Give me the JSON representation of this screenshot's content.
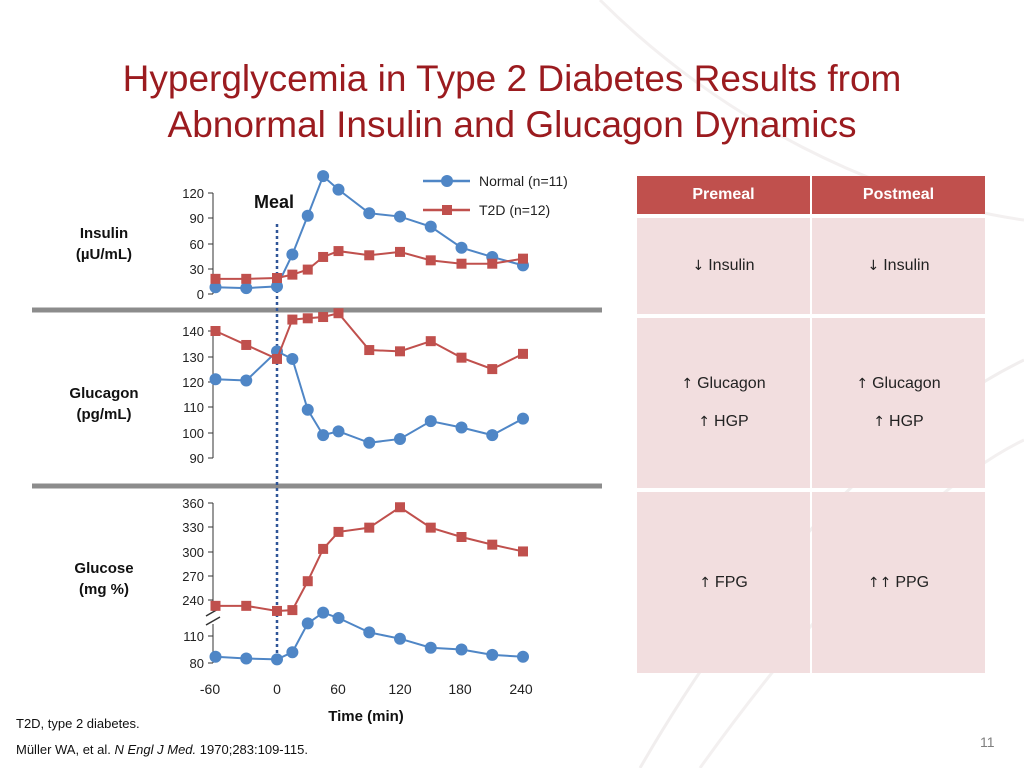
{
  "slide": {
    "title_line1": "Hyperglycemia in Type 2 Diabetes Results from",
    "title_line2": "Abnormal Insulin and Glucagon Dynamics",
    "slide_number": "11"
  },
  "footnotes": {
    "abbrev": "T2D, type 2 diabetes.",
    "ref_authors": "Müller WA, et al.",
    "ref_journal": "N Engl J Med.",
    "ref_details": "1970;283:109-115."
  },
  "colors": {
    "title": "#9b1b1f",
    "normal": "#4f86c6",
    "t2d": "#c0504d",
    "table_header": "#c0504d",
    "table_cell": "#f2dedf",
    "separator": "#8c8c8c",
    "meal_line": "#2f5597"
  },
  "table": {
    "headers": [
      "Premeal",
      "Postmeal"
    ],
    "rows": [
      {
        "premeal": [
          {
            "arrow": "↓",
            "text": "Insulin"
          }
        ],
        "postmeal": [
          {
            "arrow": "↓",
            "text": "Insulin"
          }
        ]
      },
      {
        "premeal": [
          {
            "arrow": "↑",
            "text": "Glucagon"
          },
          {
            "arrow": "↑",
            "text": "HGP"
          }
        ],
        "postmeal": [
          {
            "arrow": "↑",
            "text": "Glucagon"
          },
          {
            "arrow": "↑",
            "text": "HGP"
          }
        ]
      },
      {
        "premeal": [
          {
            "arrow": "↑",
            "text": "FPG"
          }
        ],
        "postmeal": [
          {
            "arrow": "↑↑",
            "text": "PPG"
          }
        ]
      }
    ]
  },
  "chart_data": {
    "type": "line",
    "xlabel": "Time (min)",
    "x_ticks": [
      "-60",
      "0",
      "60",
      "120",
      "180",
      "240"
    ],
    "annotation": "Meal",
    "meal_time": 0,
    "legend": [
      {
        "name": "Normal (n=11)",
        "marker": "circle"
      },
      {
        "name": "T2D (n=12)",
        "marker": "square"
      }
    ],
    "panels": [
      {
        "name": "insulin",
        "ylabel": [
          "Insulin",
          "(µU/mL)"
        ],
        "yticks": [
          "120",
          "90",
          "60",
          "30",
          "0"
        ],
        "ylim": [
          0,
          120
        ],
        "series": [
          {
            "name": "Normal (n=11)",
            "x": [
              -60,
              -30,
              0,
              15,
              30,
              45,
              60,
              90,
              120,
              150,
              180,
              210,
              240
            ],
            "y": [
              8,
              7,
              9,
              47,
              93,
              140,
              124,
              96,
              92,
              80,
              55,
              44,
              34
            ]
          },
          {
            "name": "T2D (n=12)",
            "x": [
              -60,
              -30,
              0,
              15,
              30,
              45,
              60,
              90,
              120,
              150,
              180,
              210,
              240
            ],
            "y": [
              18,
              18,
              19,
              23,
              29,
              44,
              51,
              46,
              50,
              40,
              36,
              36,
              42
            ]
          }
        ]
      },
      {
        "name": "glucagon",
        "ylabel": [
          "Glucagon",
          "(pg/mL)"
        ],
        "yticks": [
          "140",
          "130",
          "120",
          "110",
          "100",
          "90"
        ],
        "ylim": [
          90,
          140
        ],
        "series": [
          {
            "name": "Normal (n=11)",
            "x": [
              -60,
              -30,
              0,
              15,
              30,
              45,
              60,
              90,
              120,
              150,
              180,
              210,
              240
            ],
            "y": [
              121,
              120.5,
              132,
              129,
              109,
              99,
              100.5,
              96,
              97.5,
              104.5,
              102,
              99,
              105.5
            ]
          },
          {
            "name": "T2D (n=12)",
            "x": [
              -60,
              -30,
              0,
              15,
              30,
              45,
              60,
              90,
              120,
              150,
              180,
              210,
              240
            ],
            "y": [
              140,
              134.5,
              129,
              144.5,
              145,
              145.5,
              147,
              132.5,
              132,
              136,
              129.5,
              125,
              131
            ]
          }
        ]
      },
      {
        "name": "glucose",
        "ylabel": [
          "Glucose",
          "(mg %)"
        ],
        "yticks": [
          "360",
          "330",
          "300",
          "270",
          "240",
          "110",
          "80"
        ],
        "axis_break": "between 240 and 110",
        "series": [
          {
            "name": "Normal (n=11)",
            "x": [
              -60,
              -30,
              0,
              15,
              30,
              45,
              60,
              90,
              120,
              150,
              180,
              210,
              240
            ],
            "y": [
              87,
              85,
              84,
              92,
              124,
              136,
              130,
              114,
              107,
              97,
              95,
              89,
              87
            ]
          },
          {
            "name": "T2D (n=12)",
            "x": [
              -60,
              -30,
              0,
              15,
              30,
              45,
              60,
              90,
              120,
              150,
              180,
              210,
              240
            ],
            "y": [
              239,
              239,
              233,
              234,
              268,
              306,
              326,
              331,
              355,
              331,
              320,
              311,
              303
            ]
          }
        ]
      }
    ]
  }
}
